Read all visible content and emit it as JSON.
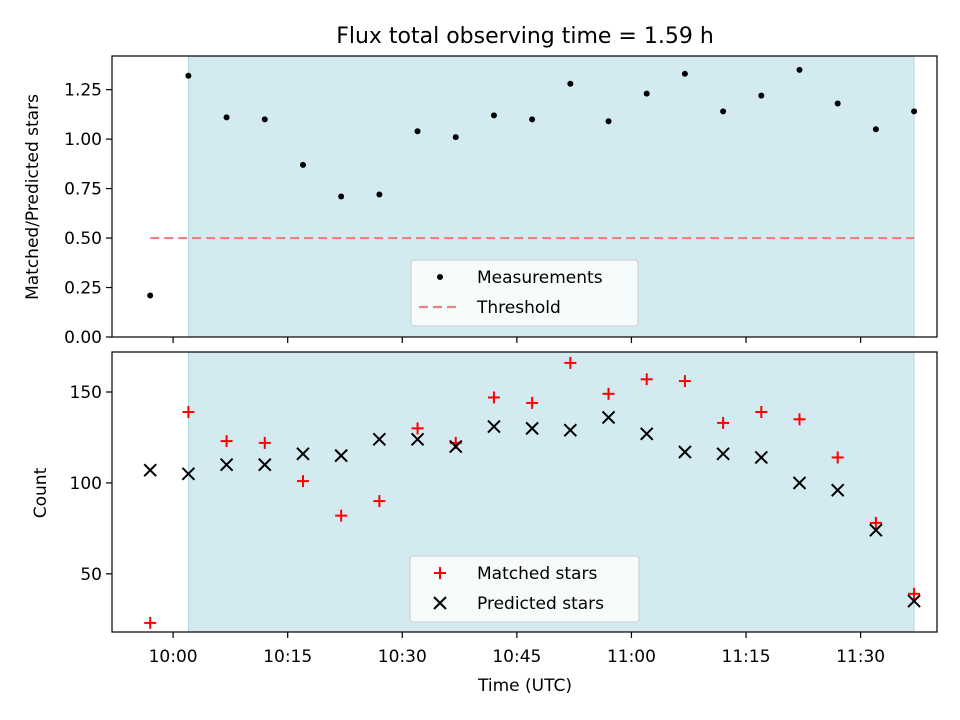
{
  "figure": {
    "title": "Flux total observing time = 1.59 h",
    "xlabel": "Time (UTC)"
  },
  "chart_data": [
    {
      "type": "scatter",
      "title": "Flux total observing time = 1.59 h",
      "ylabel": "Matched/Predicted stars",
      "xlim": [
        "09:52",
        "11:40"
      ],
      "ylim": [
        0,
        1.42
      ],
      "yticks": [
        0.0,
        0.25,
        0.5,
        0.75,
        1.0,
        1.25
      ],
      "ytick_labels": [
        "0.00",
        "0.25",
        "0.50",
        "0.75",
        "1.00",
        "1.25"
      ],
      "shaded_span": {
        "start": "10:02",
        "end": "11:37",
        "color": "#d3eaf0"
      },
      "legend": {
        "placement": "lower center",
        "entries": [
          "Measurements",
          "Threshold"
        ]
      },
      "series": [
        {
          "name": "Measurements",
          "marker": "dot",
          "color": "#000000",
          "x": [
            "09:57",
            "10:02",
            "10:07",
            "10:12",
            "10:17",
            "10:22",
            "10:27",
            "10:32",
            "10:37",
            "10:42",
            "10:47",
            "10:52",
            "10:57",
            "11:02",
            "11:07",
            "11:12",
            "11:17",
            "11:22",
            "11:27",
            "11:32",
            "11:37"
          ],
          "y": [
            0.21,
            1.32,
            1.11,
            1.1,
            0.87,
            0.71,
            0.72,
            1.04,
            1.01,
            1.12,
            1.1,
            1.28,
            1.09,
            1.23,
            1.33,
            1.14,
            1.22,
            1.35,
            1.18,
            1.05,
            1.14
          ]
        },
        {
          "name": "Threshold",
          "style": "dashed-line",
          "color": "#f08080",
          "x": [
            "09:57",
            "11:37"
          ],
          "y": [
            0.5,
            0.5
          ]
        }
      ]
    },
    {
      "type": "scatter",
      "xlabel": "Time (UTC)",
      "ylabel": "Count",
      "xlim": [
        "09:52",
        "11:40"
      ],
      "ylim": [
        18,
        172
      ],
      "yticks": [
        50,
        100,
        150
      ],
      "ytick_labels": [
        "50",
        "100",
        "150"
      ],
      "xticks": [
        "10:00",
        "10:15",
        "10:30",
        "10:45",
        "11:00",
        "11:15",
        "11:30"
      ],
      "shaded_span": {
        "start": "10:02",
        "end": "11:37",
        "color": "#d3eaf0"
      },
      "legend": {
        "placement": "lower center",
        "entries": [
          "Matched stars",
          "Predicted stars"
        ]
      },
      "series": [
        {
          "name": "Matched stars",
          "marker": "plus",
          "color": "#ff0000",
          "x": [
            "09:57",
            "10:02",
            "10:07",
            "10:12",
            "10:17",
            "10:22",
            "10:27",
            "10:32",
            "10:37",
            "10:42",
            "10:47",
            "10:52",
            "10:57",
            "11:02",
            "11:07",
            "11:12",
            "11:17",
            "11:22",
            "11:27",
            "11:32",
            "11:37"
          ],
          "y": [
            23,
            139,
            123,
            122,
            101,
            82,
            90,
            130,
            122,
            147,
            144,
            166,
            149,
            157,
            156,
            133,
            139,
            135,
            114,
            78,
            39
          ]
        },
        {
          "name": "Predicted stars",
          "marker": "x",
          "color": "#000000",
          "x": [
            "09:57",
            "10:02",
            "10:07",
            "10:12",
            "10:17",
            "10:22",
            "10:27",
            "10:32",
            "10:37",
            "10:42",
            "10:47",
            "10:52",
            "10:57",
            "11:02",
            "11:07",
            "11:12",
            "11:17",
            "11:22",
            "11:27",
            "11:32",
            "11:37"
          ],
          "y": [
            107,
            105,
            110,
            110,
            116,
            115,
            124,
            124,
            120,
            131,
            130,
            129,
            136,
            127,
            117,
            116,
            114,
            100,
            96,
            74,
            35
          ]
        }
      ]
    }
  ]
}
